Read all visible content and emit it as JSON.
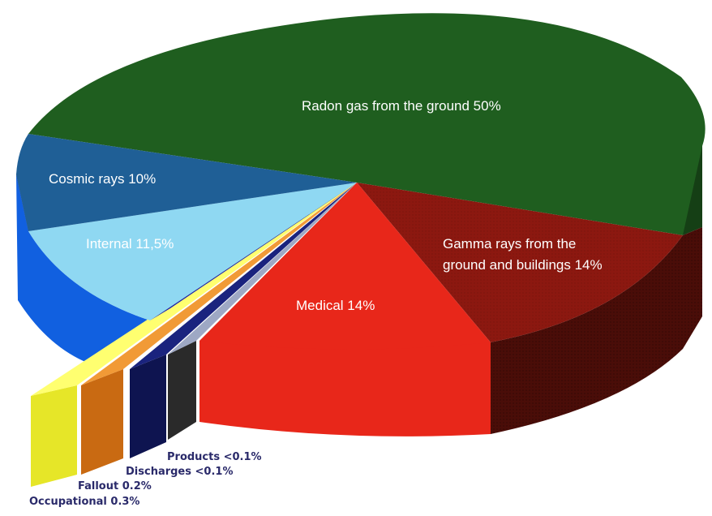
{
  "chart_data": {
    "type": "pie",
    "title": "",
    "style": "3d-exploded",
    "slices": [
      {
        "label": "Radon gas from the ground 50%",
        "value": 50,
        "color": "#1f5e1f"
      },
      {
        "label": "Gamma rays from the ground and buildings 14%",
        "value": 14,
        "color": "#8c1810"
      },
      {
        "label": "Medical 14%",
        "value": 14,
        "color": "#e8271a"
      },
      {
        "label": "Products <0.1%",
        "value": 0.1,
        "color": "#3a3a3a"
      },
      {
        "label": "Discharges <0.1%",
        "value": 0.1,
        "color": "#141a66"
      },
      {
        "label": "Fallout 0.2%",
        "value": 0.2,
        "color": "#e6801c"
      },
      {
        "label": "Occupational 0.3%",
        "value": 0.3,
        "color": "#ecec30"
      },
      {
        "label": "Internal 11,5%",
        "value": 11.5,
        "color": "#8fd8f2"
      },
      {
        "label": "Cosmic rays 10%",
        "value": 10,
        "color": "#1f5f96"
      }
    ],
    "legend": "none"
  }
}
